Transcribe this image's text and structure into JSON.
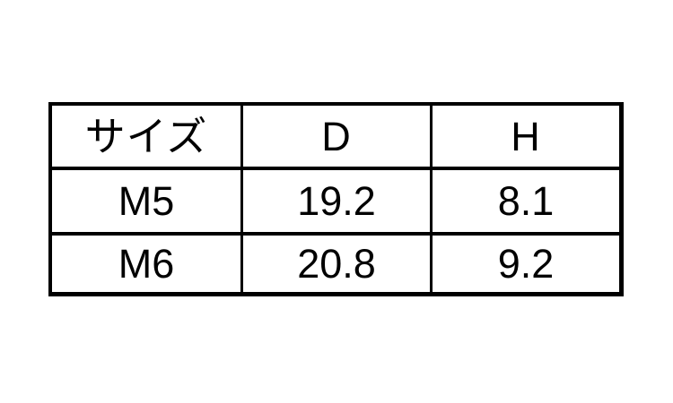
{
  "colors": {
    "background": "#ffffff",
    "border": "#000000",
    "text": "#000000"
  },
  "table": {
    "headers": [
      "サイズ",
      "D",
      "H"
    ],
    "rows": [
      {
        "cells": [
          "M5",
          "19.2",
          "8.1"
        ]
      },
      {
        "cells": [
          "M6",
          "20.8",
          "9.2"
        ]
      }
    ]
  }
}
